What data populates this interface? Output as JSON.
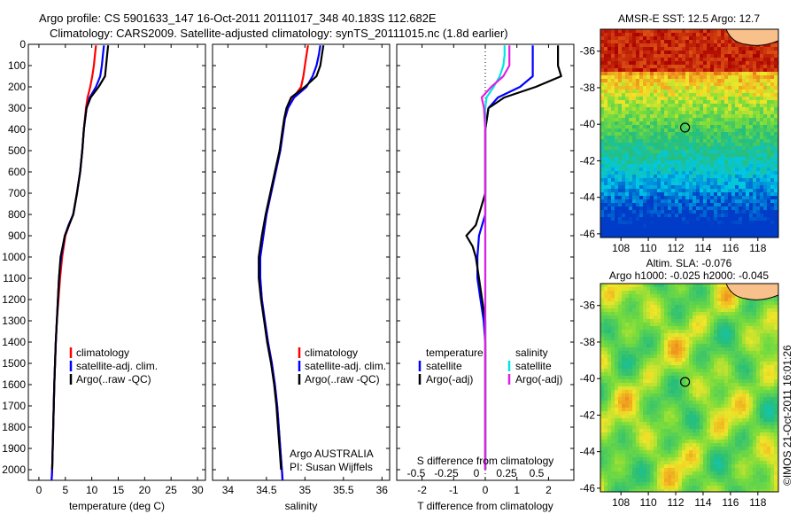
{
  "title_line1": "Argo profile: CS 5901633_147 16-Oct-2011 20111017_348 40.183S 112.682E",
  "title_line2": "Climatology: CARS2009. Satellite-adjusted climatology: synTS_20111015.nc (1.8d earlier)",
  "side_text": "©IMOS 21-Oct-2011 16:01:26",
  "colors": {
    "climatology": "#ff0000",
    "satellite": "#0000ff",
    "argo": "#000000",
    "sal_satellite": "#00e5e5",
    "sal_argo": "#e020e0"
  },
  "chart_data": [
    {
      "type": "line",
      "xlabel": "temperature (deg C)",
      "ylabel": "",
      "xlim": [
        -2,
        31.5
      ],
      "ylim": [
        2050,
        0
      ],
      "xticks": [
        0,
        5,
        10,
        15,
        20,
        25,
        30
      ],
      "yticks": [
        0,
        100,
        200,
        300,
        400,
        500,
        600,
        700,
        800,
        900,
        1000,
        1100,
        1200,
        1300,
        1400,
        1500,
        1600,
        1700,
        1800,
        1900,
        2000
      ],
      "legend": [
        "climatology",
        "satellite-adj. clim.",
        "Argo(..raw -QC)"
      ],
      "series": [
        {
          "name": "climatology",
          "color": "climatology",
          "depth": [
            5,
            50,
            100,
            150,
            200,
            250,
            300,
            400,
            500,
            600,
            700,
            800,
            850,
            900,
            1000,
            1100,
            1200,
            1300,
            1400,
            1600,
            1800,
            2000,
            2050
          ],
          "values": [
            10.8,
            10.6,
            10.4,
            10.1,
            9.7,
            9.2,
            8.9,
            8.5,
            8.2,
            7.8,
            7.2,
            6.5,
            5.7,
            5.0,
            4.4,
            4.0,
            3.7,
            3.4,
            3.2,
            2.9,
            2.7,
            2.5,
            2.4
          ]
        },
        {
          "name": "satellite-adj. clim.",
          "color": "satellite",
          "depth": [
            5,
            50,
            100,
            150,
            200,
            250,
            300,
            400,
            500,
            600,
            700,
            800,
            850,
            900,
            1000,
            1100,
            1200,
            1300,
            1400,
            1600,
            1800,
            2000,
            2050
          ],
          "values": [
            12.3,
            12.1,
            11.9,
            11.6,
            10.8,
            9.6,
            9.0,
            8.5,
            8.2,
            7.8,
            7.2,
            6.5,
            5.6,
            4.9,
            4.2,
            3.8,
            3.6,
            3.4,
            3.2,
            2.9,
            2.7,
            2.5,
            2.4
          ]
        },
        {
          "name": "Argo(..raw -QC)",
          "color": "argo",
          "depth": [
            5,
            50,
            100,
            150,
            200,
            250,
            300,
            400,
            500,
            600,
            700,
            800,
            850,
            900,
            1000,
            1100,
            1200,
            1300,
            1400,
            1600,
            1800,
            2000
          ],
          "values": [
            13.1,
            12.9,
            12.7,
            12.5,
            11.3,
            9.8,
            9.0,
            8.5,
            8.2,
            7.8,
            7.2,
            6.5,
            5.7,
            4.9,
            4.1,
            3.8,
            3.6,
            3.4,
            3.2,
            2.9,
            2.7,
            2.5
          ]
        }
      ]
    },
    {
      "type": "line",
      "xlabel": "salinity",
      "ylabel": "",
      "xlim": [
        33.8,
        36.1
      ],
      "ylim": [
        2050,
        0
      ],
      "xticks": [
        34,
        34.5,
        35,
        35.5,
        36
      ],
      "legend": [
        "climatology",
        "satellite-adj. clim.",
        "Argo(..raw -QC)"
      ],
      "annotation_line1": "Argo AUSTRALIA",
      "annotation_line2": "PI: Susan Wijffels",
      "series": [
        {
          "name": "climatology",
          "color": "climatology",
          "depth": [
            5,
            50,
            100,
            150,
            200,
            250,
            300,
            350,
            400,
            500,
            600,
            700,
            800,
            900,
            1000,
            1100,
            1200,
            1300,
            1400,
            1500,
            1600,
            1700,
            1800,
            1900,
            2000,
            2050
          ],
          "values": [
            35.04,
            35.02,
            35.0,
            34.98,
            34.95,
            34.85,
            34.78,
            34.74,
            34.72,
            34.68,
            34.62,
            34.56,
            34.5,
            34.46,
            34.42,
            34.42,
            34.44,
            34.48,
            34.52,
            34.57,
            34.61,
            34.64,
            34.66,
            34.68,
            34.7,
            34.71
          ]
        },
        {
          "name": "satellite-adj. clim.",
          "color": "satellite",
          "depth": [
            5,
            50,
            100,
            150,
            200,
            250,
            300,
            350,
            400,
            500,
            600,
            700,
            800,
            900,
            1000,
            1100,
            1200,
            1300,
            1400,
            1500,
            1600,
            1700,
            1800,
            1900,
            2000,
            2050
          ],
          "values": [
            35.2,
            35.18,
            35.15,
            35.1,
            35.02,
            34.86,
            34.78,
            34.74,
            34.72,
            34.68,
            34.62,
            34.56,
            34.5,
            34.46,
            34.42,
            34.42,
            34.44,
            34.48,
            34.52,
            34.57,
            34.61,
            34.64,
            34.66,
            34.68,
            34.7,
            34.71
          ]
        },
        {
          "name": "Argo(..raw -QC)",
          "color": "argo",
          "depth": [
            5,
            50,
            100,
            150,
            200,
            250,
            300,
            350,
            400,
            500,
            600,
            700,
            800,
            900,
            1000,
            1100,
            1200,
            1300,
            1400,
            1500,
            1600,
            1700,
            1800,
            1900,
            2000
          ],
          "values": [
            35.24,
            35.22,
            35.2,
            35.15,
            35.0,
            34.82,
            34.76,
            34.73,
            34.71,
            34.67,
            34.61,
            34.55,
            34.49,
            34.44,
            34.4,
            34.4,
            34.43,
            34.47,
            34.51,
            34.56,
            34.6,
            34.63,
            34.65,
            34.67,
            34.69
          ]
        }
      ]
    },
    {
      "type": "line",
      "xlabel": "T difference from climatology",
      "xlabel_top": "S difference from climatology",
      "ylabel": "",
      "xlim": [
        -2.8,
        2.8
      ],
      "ylim": [
        2050,
        0
      ],
      "xticks": [
        -2,
        -1,
        0,
        1,
        2
      ],
      "xticks_top": [
        "-0.5",
        "-0.25",
        "0",
        "0.25",
        "0.5"
      ],
      "legend_temperature_title": "temperature",
      "legend_salinity_title": "salinity",
      "legend": [
        "satellite",
        "Argo(-adj)",
        "satellite",
        "Argo(-adj)"
      ],
      "series": [
        {
          "name": "satellite",
          "group": "temperature",
          "color": "satellite",
          "depth": [
            5,
            50,
            100,
            150,
            200,
            250,
            300,
            400,
            500,
            600,
            700,
            800,
            850,
            900,
            1000,
            1100,
            1200,
            1300,
            1400,
            1500,
            1700,
            2000
          ],
          "values": [
            1.5,
            1.5,
            1.5,
            1.5,
            1.1,
            0.4,
            0.1,
            0.0,
            0.0,
            0.0,
            0.0,
            0.0,
            -0.1,
            -0.2,
            -0.25,
            -0.25,
            -0.15,
            -0.05,
            0.0,
            0.0,
            0.0,
            0.0
          ]
        },
        {
          "name": "Argo(-adj)",
          "group": "temperature",
          "color": "argo",
          "depth": [
            5,
            50,
            100,
            150,
            200,
            250,
            300,
            400,
            500,
            600,
            700,
            800,
            850,
            900,
            950,
            1000,
            1100,
            1200,
            1300,
            1400,
            1500,
            1700,
            2000
          ],
          "values": [
            2.3,
            2.3,
            2.3,
            2.4,
            1.6,
            0.6,
            0.1,
            0.0,
            0.0,
            0.0,
            0.0,
            -0.2,
            -0.3,
            -0.6,
            -0.4,
            -0.3,
            -0.2,
            -0.1,
            0.0,
            0.0,
            0.0,
            0.0,
            0.0
          ]
        },
        {
          "name": "satellite",
          "group": "salinity",
          "color": "sal_satellite",
          "depth": [
            5,
            50,
            100,
            150,
            200,
            250,
            300,
            400,
            500,
            700,
            900,
            1000,
            1100,
            1200,
            1400,
            1600,
            2000
          ],
          "values": [
            0.16,
            0.16,
            0.15,
            0.12,
            0.07,
            0.01,
            0.0,
            0.0,
            0.0,
            0.0,
            0.0,
            0.0,
            0.0,
            0.0,
            0.0,
            0.0,
            0.0
          ]
        },
        {
          "name": "Argo(-adj)",
          "group": "salinity",
          "color": "sal_argo",
          "depth": [
            5,
            50,
            100,
            150,
            200,
            250,
            300,
            400,
            500,
            700,
            900,
            1000,
            1100,
            1200,
            1400,
            1600,
            2000
          ],
          "values": [
            0.2,
            0.2,
            0.2,
            0.15,
            0.05,
            -0.03,
            -0.01,
            0.0,
            0.0,
            0.0,
            0.0,
            0.0,
            0.0,
            0.0,
            0.0,
            0.0,
            0.0
          ]
        }
      ]
    },
    {
      "type": "heatmap",
      "title": "AMSR-E SST: 12.5 Argo: 12.7",
      "xlim": [
        106.5,
        119.5
      ],
      "ylim": [
        -46.2,
        -34.8
      ],
      "xticks": [
        108,
        110,
        112,
        114,
        116,
        118
      ],
      "yticks": [
        -36,
        -38,
        -40,
        -42,
        -44,
        -46
      ],
      "marker": {
        "lon": 112.682,
        "lat": -40.183
      }
    },
    {
      "type": "heatmap",
      "title_line1": "Altim. SLA: -0.076",
      "title_line2": "Argo h1000: -0.025 h2000: -0.045",
      "xlim": [
        106.5,
        119.5
      ],
      "ylim": [
        -46.2,
        -34.8
      ],
      "xticks": [
        108,
        110,
        112,
        114,
        116,
        118
      ],
      "yticks": [
        -36,
        -38,
        -40,
        -42,
        -44,
        -46
      ],
      "marker": {
        "lon": 112.682,
        "lat": -40.183
      }
    }
  ]
}
